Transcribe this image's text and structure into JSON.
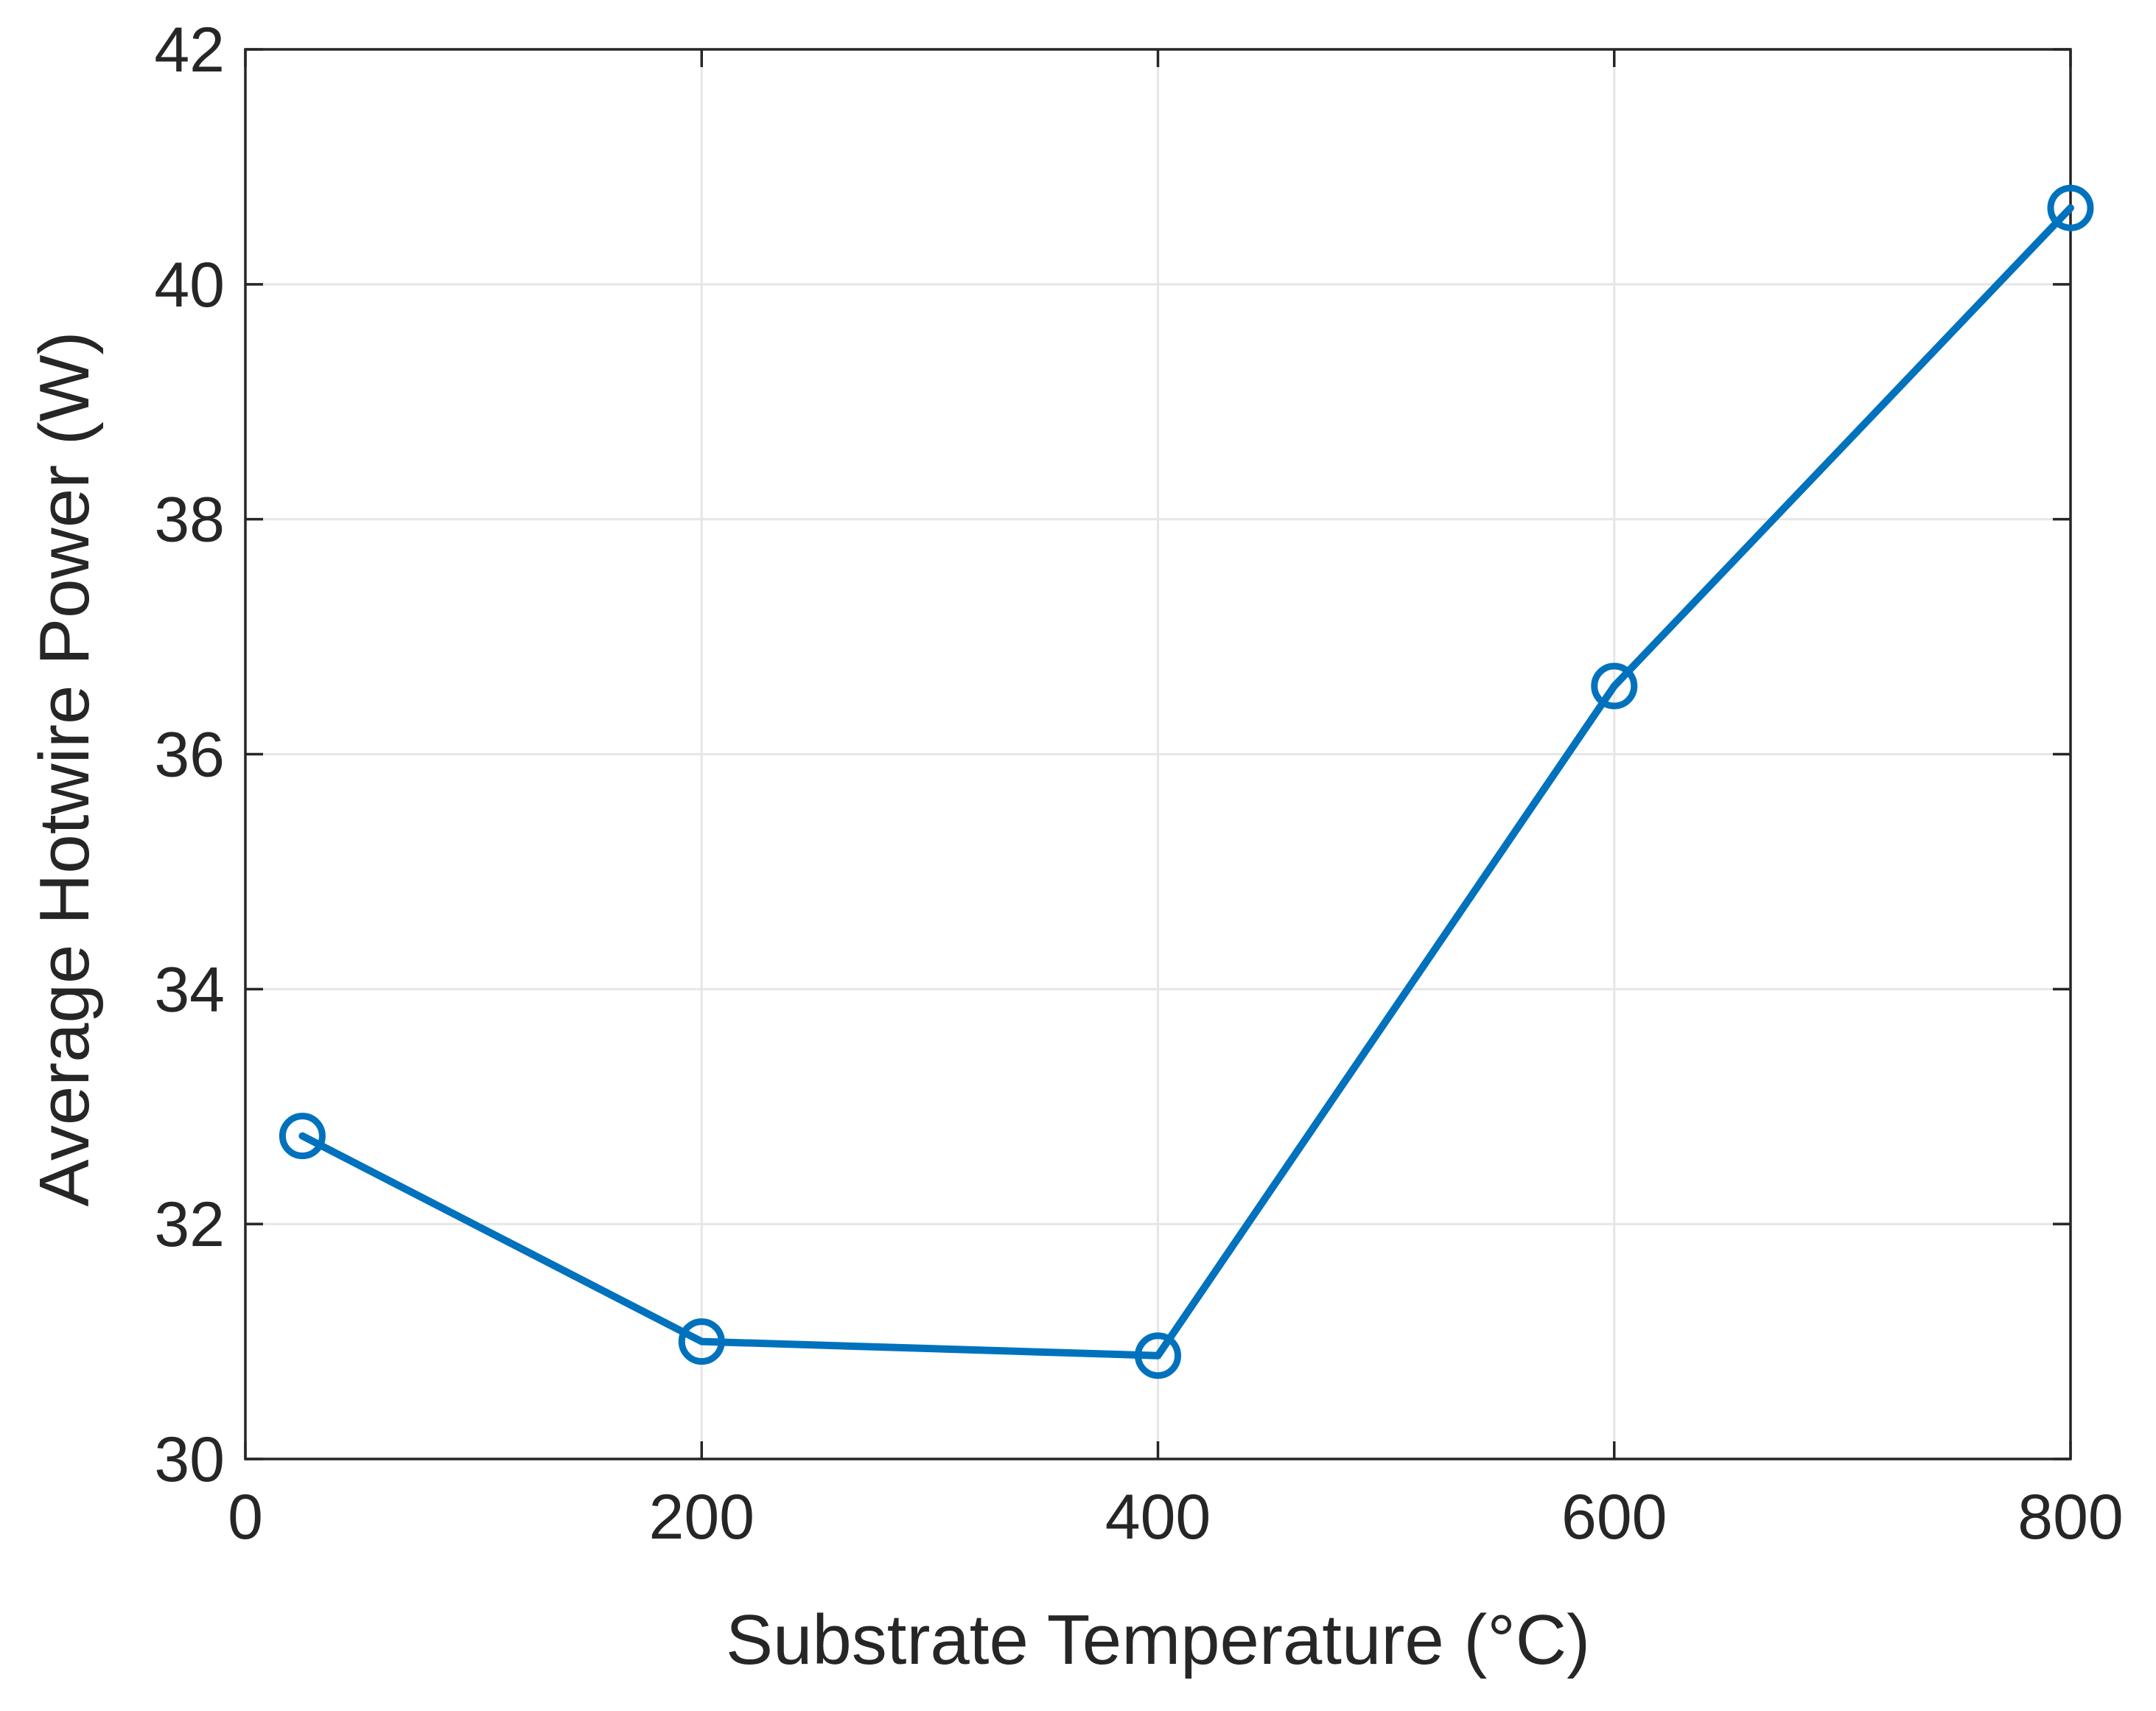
{
  "chart_data": {
    "type": "line",
    "title": "",
    "xlabel": "Substrate Temperature (°C)",
    "ylabel": "Average Hotwire Power (W)",
    "xlim": [
      0,
      800
    ],
    "ylim": [
      30,
      42
    ],
    "xticks": [
      0,
      200,
      400,
      600,
      800
    ],
    "yticks": [
      30,
      32,
      34,
      36,
      38,
      40,
      42
    ],
    "grid": true,
    "series": [
      {
        "color": "#0072BD",
        "marker": "circle",
        "x": [
          25,
          200,
          400,
          600,
          800
        ],
        "y": [
          32.75,
          31.0,
          30.88,
          36.58,
          40.65
        ]
      }
    ]
  }
}
